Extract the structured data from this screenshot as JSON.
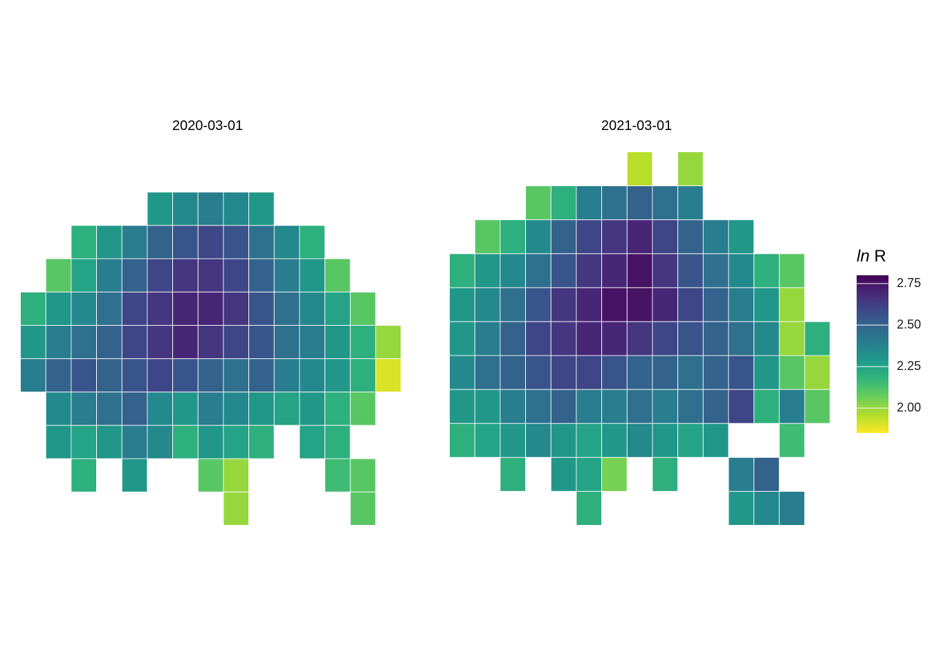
{
  "chart_data": {
    "type": "heatmap",
    "panels": [
      {
        "title": "2020-03-01",
        "x": [
          0,
          1,
          2,
          3,
          4,
          5,
          6,
          7,
          8,
          9,
          10,
          11,
          12,
          13,
          14
        ],
        "y": [
          0,
          1,
          2,
          3,
          4,
          5,
          6,
          7,
          8,
          9,
          10
        ],
        "values": [
          [
            null,
            null,
            null,
            null,
            null,
            null,
            null,
            null,
            null,
            null,
            null,
            null,
            null,
            null,
            null
          ],
          [
            null,
            null,
            null,
            null,
            null,
            2.3,
            2.35,
            2.4,
            2.35,
            2.3,
            null,
            null,
            null,
            null,
            null
          ],
          [
            null,
            null,
            2.2,
            2.3,
            2.4,
            2.5,
            2.55,
            2.6,
            2.55,
            2.45,
            2.35,
            2.2,
            null,
            null,
            null
          ],
          [
            null,
            2.1,
            2.25,
            2.4,
            2.5,
            2.6,
            2.65,
            2.65,
            2.6,
            2.5,
            2.4,
            2.3,
            2.1,
            null,
            null
          ],
          [
            2.2,
            2.3,
            2.35,
            2.45,
            2.6,
            2.65,
            2.7,
            2.7,
            2.65,
            2.55,
            2.45,
            2.35,
            2.25,
            2.1,
            null
          ],
          [
            2.3,
            2.4,
            2.45,
            2.5,
            2.6,
            2.65,
            2.7,
            2.65,
            2.6,
            2.55,
            2.45,
            2.4,
            2.3,
            2.2,
            2.0
          ],
          [
            2.4,
            2.5,
            2.55,
            2.5,
            2.55,
            2.6,
            2.55,
            2.5,
            2.45,
            2.5,
            2.4,
            2.35,
            2.3,
            2.2,
            1.9
          ],
          [
            null,
            2.35,
            2.4,
            2.45,
            2.5,
            2.35,
            2.3,
            2.4,
            2.35,
            2.3,
            2.25,
            2.3,
            2.2,
            2.1,
            null
          ],
          [
            null,
            2.3,
            2.25,
            2.3,
            2.4,
            2.35,
            2.2,
            2.3,
            2.25,
            2.2,
            null,
            2.25,
            2.2,
            null,
            null
          ],
          [
            null,
            null,
            2.2,
            null,
            2.3,
            null,
            null,
            2.1,
            2.0,
            null,
            null,
            null,
            2.15,
            2.1,
            null
          ],
          [
            null,
            null,
            null,
            null,
            null,
            null,
            null,
            null,
            2.0,
            null,
            null,
            null,
            null,
            2.1,
            null
          ]
        ]
      },
      {
        "title": "2021-03-01",
        "x": [
          0,
          1,
          2,
          3,
          4,
          5,
          6,
          7,
          8,
          9,
          10,
          11,
          12,
          13,
          14
        ],
        "y": [
          0,
          1,
          2,
          3,
          4,
          5,
          6,
          7,
          8,
          9,
          10
        ],
        "values": [
          [
            null,
            null,
            null,
            null,
            null,
            null,
            null,
            1.95,
            null,
            2.0,
            null,
            null,
            null,
            null,
            null
          ],
          [
            null,
            null,
            null,
            2.1,
            2.2,
            2.4,
            2.45,
            2.5,
            2.45,
            2.4,
            null,
            null,
            null,
            null,
            null
          ],
          [
            null,
            2.1,
            2.2,
            2.35,
            2.5,
            2.6,
            2.65,
            2.7,
            2.6,
            2.5,
            2.4,
            2.3,
            null,
            null,
            null
          ],
          [
            2.2,
            2.3,
            2.35,
            2.45,
            2.55,
            2.65,
            2.7,
            2.75,
            2.65,
            2.55,
            2.45,
            2.35,
            2.2,
            2.1,
            null
          ],
          [
            2.3,
            2.35,
            2.45,
            2.55,
            2.65,
            2.7,
            2.75,
            2.75,
            2.7,
            2.6,
            2.5,
            2.4,
            2.3,
            2.0,
            null
          ],
          [
            2.3,
            2.4,
            2.5,
            2.6,
            2.65,
            2.7,
            2.7,
            2.65,
            2.6,
            2.55,
            2.5,
            2.45,
            2.35,
            2.0,
            2.2
          ],
          [
            2.35,
            2.45,
            2.5,
            2.55,
            2.6,
            2.6,
            2.55,
            2.5,
            2.5,
            2.45,
            2.5,
            2.55,
            2.3,
            2.1,
            2.0
          ],
          [
            2.3,
            2.3,
            2.4,
            2.45,
            2.5,
            2.4,
            2.4,
            2.45,
            2.4,
            2.45,
            2.5,
            2.6,
            2.2,
            2.4,
            2.1
          ],
          [
            2.2,
            2.25,
            2.3,
            2.35,
            2.3,
            2.25,
            2.3,
            2.35,
            2.3,
            2.25,
            2.3,
            null,
            null,
            2.15,
            null
          ],
          [
            null,
            null,
            2.2,
            null,
            2.3,
            2.25,
            2.05,
            null,
            2.2,
            null,
            null,
            2.4,
            2.5,
            null,
            null
          ],
          [
            null,
            null,
            null,
            null,
            null,
            2.2,
            null,
            null,
            null,
            null,
            null,
            2.3,
            2.35,
            2.4,
            null
          ]
        ]
      }
    ],
    "missing_color": "#7f7f7f",
    "legend": {
      "title_italic": "ln",
      "title_rest": " R",
      "ticks": [
        "2.75",
        "2.50",
        "2.25",
        "2.00"
      ],
      "tick_values": [
        2.75,
        2.5,
        2.25,
        2.0
      ],
      "range": [
        1.85,
        2.8
      ],
      "colors": [
        "#fde725",
        "#b5de2b",
        "#6ece58",
        "#35b779",
        "#1f9e89",
        "#26828e",
        "#31688e",
        "#3e4989",
        "#482878",
        "#440154"
      ]
    }
  }
}
